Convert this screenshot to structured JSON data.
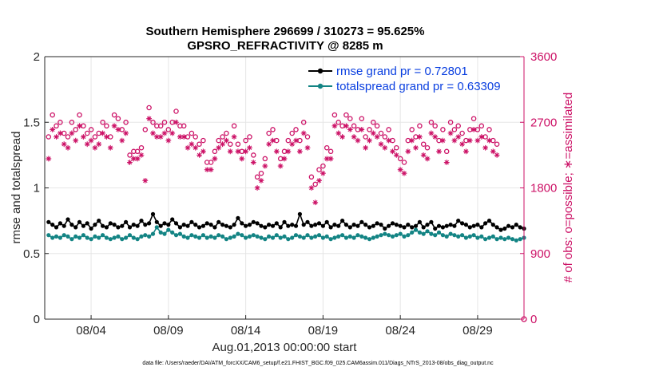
{
  "chart_data": {
    "type": "line",
    "title": "Southern Hemisphere 296699 / 310273 = 95.625%",
    "subtitle": "GPSRO_REFRACTIVITY @ 8285 m",
    "xlabel": "Aug.01,2013 00:00:00 start",
    "ylabel": "rmse and totalspread",
    "ylabel_right": "# of obs: o=possible; ∗=assimilated",
    "footnote": "data file: /Users/raeder/DAI/ATM_forcXX/CAM6_setup/f.e21.FHIST_BGC.f09_025.CAM6assim.011/Diags_NTrS_2013-08/obs_diag_output.nc",
    "x_tick_labels": [
      "08/04",
      "08/09",
      "08/14",
      "08/19",
      "08/24",
      "08/29"
    ],
    "x_tick_values": [
      4,
      9,
      14,
      19,
      24,
      29
    ],
    "xlim": [
      1.0,
      32.0
    ],
    "ylim": [
      0,
      2
    ],
    "y_ticks": [
      "0",
      "0.5",
      "1",
      "1.5",
      "2"
    ],
    "ylim_right": [
      0,
      3600
    ],
    "y_ticks_right": [
      "0",
      "900",
      "1800",
      "2700",
      "3600"
    ],
    "grid": true,
    "legend_position": "top-right",
    "series": [
      {
        "name": "rmse grand pr = 0.72801",
        "color": "#000000",
        "marker": "dot",
        "axis": "left",
        "values": [
          0.74,
          0.72,
          0.7,
          0.73,
          0.71,
          0.76,
          0.72,
          0.7,
          0.74,
          0.71,
          0.73,
          0.69,
          0.72,
          0.75,
          0.71,
          0.7,
          0.73,
          0.72,
          0.7,
          0.71,
          0.74,
          0.7,
          0.72,
          0.71,
          0.75,
          0.72,
          0.73,
          0.8,
          0.74,
          0.71,
          0.73,
          0.72,
          0.76,
          0.73,
          0.7,
          0.72,
          0.71,
          0.74,
          0.72,
          0.7,
          0.71,
          0.73,
          0.72,
          0.7,
          0.74,
          0.72,
          0.71,
          0.7,
          0.72,
          0.77,
          0.73,
          0.71,
          0.72,
          0.74,
          0.73,
          0.71,
          0.7,
          0.72,
          0.71,
          0.73,
          0.7,
          0.74,
          0.71,
          0.72,
          0.71,
          0.8,
          0.72,
          0.74,
          0.71,
          0.72,
          0.73,
          0.71,
          0.74,
          0.7,
          0.72,
          0.71,
          0.75,
          0.72,
          0.7,
          0.72,
          0.71,
          0.74,
          0.72,
          0.7,
          0.71,
          0.73,
          0.72,
          0.69,
          0.71,
          0.73,
          0.72,
          0.71,
          0.7,
          0.72,
          0.7,
          0.71,
          0.74,
          0.7,
          0.72,
          0.74,
          0.69,
          0.71,
          0.7,
          0.71,
          0.72,
          0.71,
          0.75,
          0.73,
          0.72,
          0.7,
          0.71,
          0.72,
          0.7,
          0.73,
          0.75,
          0.72,
          0.7,
          0.68,
          0.69,
          0.71,
          0.7,
          0.72,
          0.7,
          0.69
        ],
        "x_start": 1.25,
        "x_step": 0.25
      },
      {
        "name": "totalspread grand pr = 0.63309",
        "color": "#138484",
        "marker": "dot",
        "axis": "left",
        "values": [
          0.64,
          0.62,
          0.63,
          0.62,
          0.64,
          0.63,
          0.61,
          0.63,
          0.62,
          0.64,
          0.62,
          0.61,
          0.63,
          0.62,
          0.64,
          0.62,
          0.61,
          0.62,
          0.63,
          0.61,
          0.62,
          0.64,
          0.62,
          0.61,
          0.63,
          0.64,
          0.63,
          0.65,
          0.7,
          0.66,
          0.65,
          0.68,
          0.66,
          0.64,
          0.65,
          0.63,
          0.62,
          0.64,
          0.63,
          0.62,
          0.64,
          0.62,
          0.63,
          0.62,
          0.64,
          0.63,
          0.61,
          0.62,
          0.63,
          0.65,
          0.64,
          0.62,
          0.63,
          0.64,
          0.63,
          0.62,
          0.61,
          0.63,
          0.62,
          0.64,
          0.62,
          0.63,
          0.61,
          0.62,
          0.64,
          0.63,
          0.62,
          0.64,
          0.62,
          0.63,
          0.64,
          0.62,
          0.63,
          0.61,
          0.62,
          0.63,
          0.64,
          0.62,
          0.63,
          0.62,
          0.64,
          0.63,
          0.62,
          0.61,
          0.62,
          0.63,
          0.64,
          0.65,
          0.64,
          0.63,
          0.64,
          0.65,
          0.63,
          0.64,
          0.66,
          0.68,
          0.66,
          0.65,
          0.67,
          0.65,
          0.64,
          0.66,
          0.64,
          0.63,
          0.65,
          0.64,
          0.63,
          0.64,
          0.62,
          0.63,
          0.64,
          0.62,
          0.63,
          0.61,
          0.62,
          0.63,
          0.61,
          0.62,
          0.61,
          0.62,
          0.61,
          0.6,
          0.61,
          0.62
        ],
        "x_start": 1.25,
        "x_step": 0.25
      },
      {
        "name": "possible",
        "color": "#cc1166",
        "marker": "circle",
        "axis": "right",
        "values": [
          2500,
          2800,
          2650,
          2700,
          2550,
          2500,
          2700,
          2600,
          2800,
          2650,
          2550,
          2600,
          2500,
          2550,
          2700,
          2650,
          2500,
          2800,
          2750,
          2600,
          2700,
          2250,
          2300,
          2300,
          2350,
          2600,
          2900,
          2700,
          2650,
          2650,
          2700,
          2600,
          2700,
          2850,
          2650,
          2650,
          2500,
          2550,
          2500,
          2400,
          2450,
          2150,
          2150,
          2300,
          2450,
          2500,
          2550,
          2400,
          2650,
          2400,
          2300,
          2450,
          2500,
          2250,
          1950,
          2000,
          2200,
          2550,
          2600,
          2450,
          2200,
          2300,
          2450,
          2550,
          2600,
          2450,
          2700,
          2500,
          1950,
          1850,
          2050,
          2100,
          2350,
          2300,
          2800,
          2700,
          2650,
          2800,
          2750,
          2650,
          2600,
          2750,
          2500,
          2600,
          2700,
          2650,
          2550,
          2500,
          2600,
          2450,
          2350,
          2200,
          2150,
          2450,
          2600,
          2500,
          2650,
          2400,
          2350,
          2700,
          2650,
          2450,
          2600,
          2300,
          2700,
          2600,
          2650,
          2550,
          2450,
          2600,
          2750,
          2600,
          2650,
          2500,
          2600,
          2450,
          2400
        ],
        "x_start": 1.25,
        "x_step": 0.25
      },
      {
        "name": "assimilated",
        "color": "#cc1166",
        "marker": "asterisk",
        "axis": "right",
        "values": [
          2200,
          2600,
          2500,
          2550,
          2400,
          2350,
          2550,
          2450,
          2650,
          2500,
          2400,
          2450,
          2350,
          2400,
          2550,
          2500,
          2350,
          2650,
          2600,
          2450,
          2550,
          2150,
          2200,
          2200,
          2250,
          1900,
          2750,
          2550,
          2500,
          2500,
          2550,
          2450,
          2550,
          2700,
          2500,
          2500,
          2350,
          2400,
          2350,
          2250,
          2300,
          2050,
          2050,
          2200,
          2350,
          2400,
          2450,
          2300,
          2500,
          2300,
          2200,
          2300,
          2350,
          2150,
          1800,
          1900,
          2100,
          2400,
          2450,
          2300,
          2100,
          2200,
          2300,
          2400,
          2450,
          2300,
          2550,
          2350,
          1800,
          1600,
          1900,
          2000,
          2200,
          2200,
          2650,
          2550,
          2500,
          2650,
          2600,
          2500,
          2450,
          2600,
          2350,
          2450,
          2550,
          2500,
          2400,
          2350,
          2450,
          2300,
          2250,
          2050,
          2000,
          2300,
          2450,
          2350,
          2500,
          2250,
          2200,
          2550,
          2500,
          2300,
          2450,
          2150,
          2550,
          2450,
          2500,
          2400,
          2300,
          2450,
          2600,
          2450,
          2500,
          2350,
          2450,
          2300,
          2250
        ],
        "x_start": 1.25,
        "x_step": 0.25
      }
    ]
  }
}
